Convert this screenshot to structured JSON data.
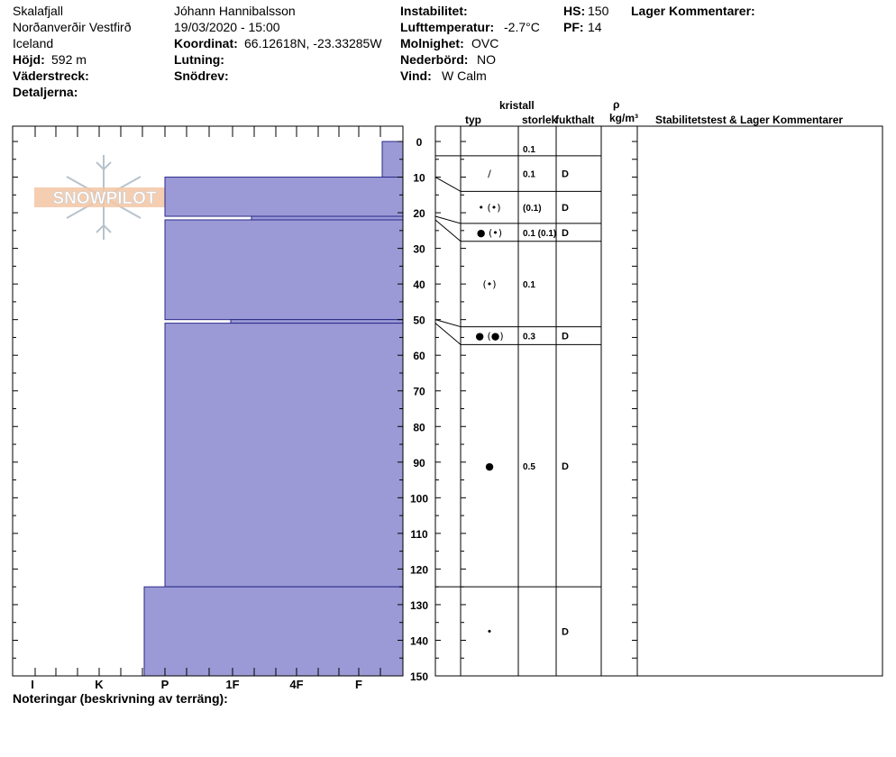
{
  "header": {
    "location": "Skalafjall",
    "region": "Norðanverðir Vestfirð",
    "country": "Iceland",
    "elevation_label": "Höjd:",
    "elevation_value": "592 m",
    "aspect_label": "Väderstreck:",
    "details_label": "Detaljerna:",
    "observer": "Jóhann Hannibalsson",
    "datetime": "19/03/2020 - 15:00",
    "coord_label": "Koordinat:",
    "coord_value": "66.12618N, -23.33285W",
    "slope_label": "Lutning:",
    "drift_label": "Snödrev:",
    "instability_label": "Instabilitet:",
    "airtemp_label": "Lufttemperatur:",
    "airtemp_value": "-2.7°C",
    "sky_label": "Molnighet:",
    "sky_value": "OVC",
    "precip_label": "Nederbörd:",
    "precip_value": "NO",
    "wind_label": "Vind:",
    "wind_value": "W Calm",
    "hs_label": "HS:",
    "hs_value": "150",
    "pf_label": "PF:",
    "pf_value": "14",
    "layer_comments_label": "Lager Kommentarer:"
  },
  "table_headers": {
    "crystal": "kristall",
    "type": "typ",
    "size": "storlek",
    "moisture": "fukthalt",
    "rho": "ρ",
    "density_unit": "kg/m³",
    "stability": "Stabilitetstest & Lager Kommentarer"
  },
  "notes_label": "Noteringar (beskrivning av terräng):",
  "watermark": "SNOWPILOT",
  "colors": {
    "fill": "#9b9ad6",
    "edge": "#2a2a8a"
  },
  "chart_data": {
    "type": "bar",
    "title": "",
    "xlabel": "",
    "ylabel": "",
    "hardness_ticks": [
      "I",
      "K",
      "P",
      "1F",
      "4F",
      "F"
    ],
    "depth_ticks": [
      0,
      10,
      20,
      30,
      40,
      50,
      60,
      70,
      80,
      90,
      100,
      110,
      120,
      130,
      140,
      150
    ],
    "ylim": [
      0,
      150
    ],
    "hardness_layers": [
      {
        "top": 0,
        "bottom": 10,
        "hardness": "F"
      },
      {
        "top": 10,
        "bottom": 21,
        "hardness": "P"
      },
      {
        "top": 21,
        "bottom": 22,
        "hardness": "1F-"
      },
      {
        "top": 22,
        "bottom": 50,
        "hardness": "P"
      },
      {
        "top": 50,
        "bottom": 51,
        "hardness": "1F"
      },
      {
        "top": 51,
        "bottom": 125,
        "hardness": "P"
      },
      {
        "top": 125,
        "bottom": 150,
        "hardness": "P+"
      }
    ],
    "layers": [
      {
        "top": 0,
        "bottom": 4,
        "grain": "",
        "size": "0.1",
        "moisture": ""
      },
      {
        "top": 4,
        "bottom": 14,
        "grain": "/",
        "size": "0.1",
        "moisture": "D"
      },
      {
        "top": 14,
        "bottom": 23,
        "grain": "• (•)",
        "size": "(0.1)",
        "moisture": "D"
      },
      {
        "top": 23,
        "bottom": 28,
        "grain": "● (•)",
        "size": "0.1 (0.1)",
        "moisture": "D"
      },
      {
        "top": 28,
        "bottom": 52,
        "grain": "(•)",
        "size": "0.1",
        "moisture": ""
      },
      {
        "top": 52,
        "bottom": 57,
        "grain": "● (●)",
        "size": "0.3",
        "moisture": "D"
      },
      {
        "top": 57,
        "bottom": 125,
        "grain": "●",
        "size": "0.5",
        "moisture": "D"
      },
      {
        "top": 125,
        "bottom": 150,
        "grain": "•",
        "size": "",
        "moisture": "D"
      }
    ],
    "hardness_boundaries": [
      4,
      10,
      21,
      22,
      50,
      51,
      125
    ]
  }
}
